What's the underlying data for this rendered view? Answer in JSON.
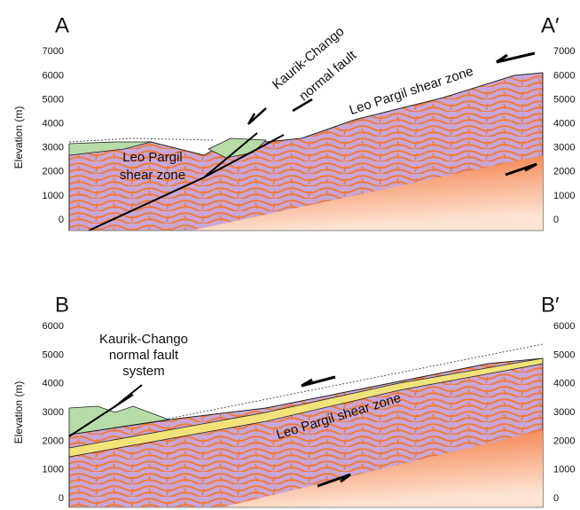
{
  "sections": [
    {
      "label_left": "A",
      "label_right": "A′",
      "y_axis_title": "Elevation (m)",
      "left_ticks": [
        "0",
        "1000",
        "2000",
        "3000",
        "4000",
        "5000",
        "6000",
        "7000"
      ],
      "right_ticks": [
        "0",
        "1000",
        "2000",
        "3000",
        "4000",
        "5000",
        "6000",
        "7000"
      ],
      "annotations": [
        "Kaurik-Chango",
        "normal fault",
        "Leo Pargil shear zone",
        "Leo Pargil",
        "shear zone"
      ]
    },
    {
      "label_left": "B",
      "label_right": "B′",
      "y_axis_title": "Elevation (m)",
      "left_ticks": [
        "0",
        "1000",
        "2000",
        "3000",
        "4000",
        "5000",
        "6000"
      ],
      "right_ticks": [
        "0",
        "1000",
        "2000",
        "3000",
        "4000",
        "5000",
        "6000"
      ],
      "annotations": [
        "Kaurik-Chango",
        "normal fault",
        "system",
        "Leo Pargil shear zone"
      ]
    }
  ]
}
